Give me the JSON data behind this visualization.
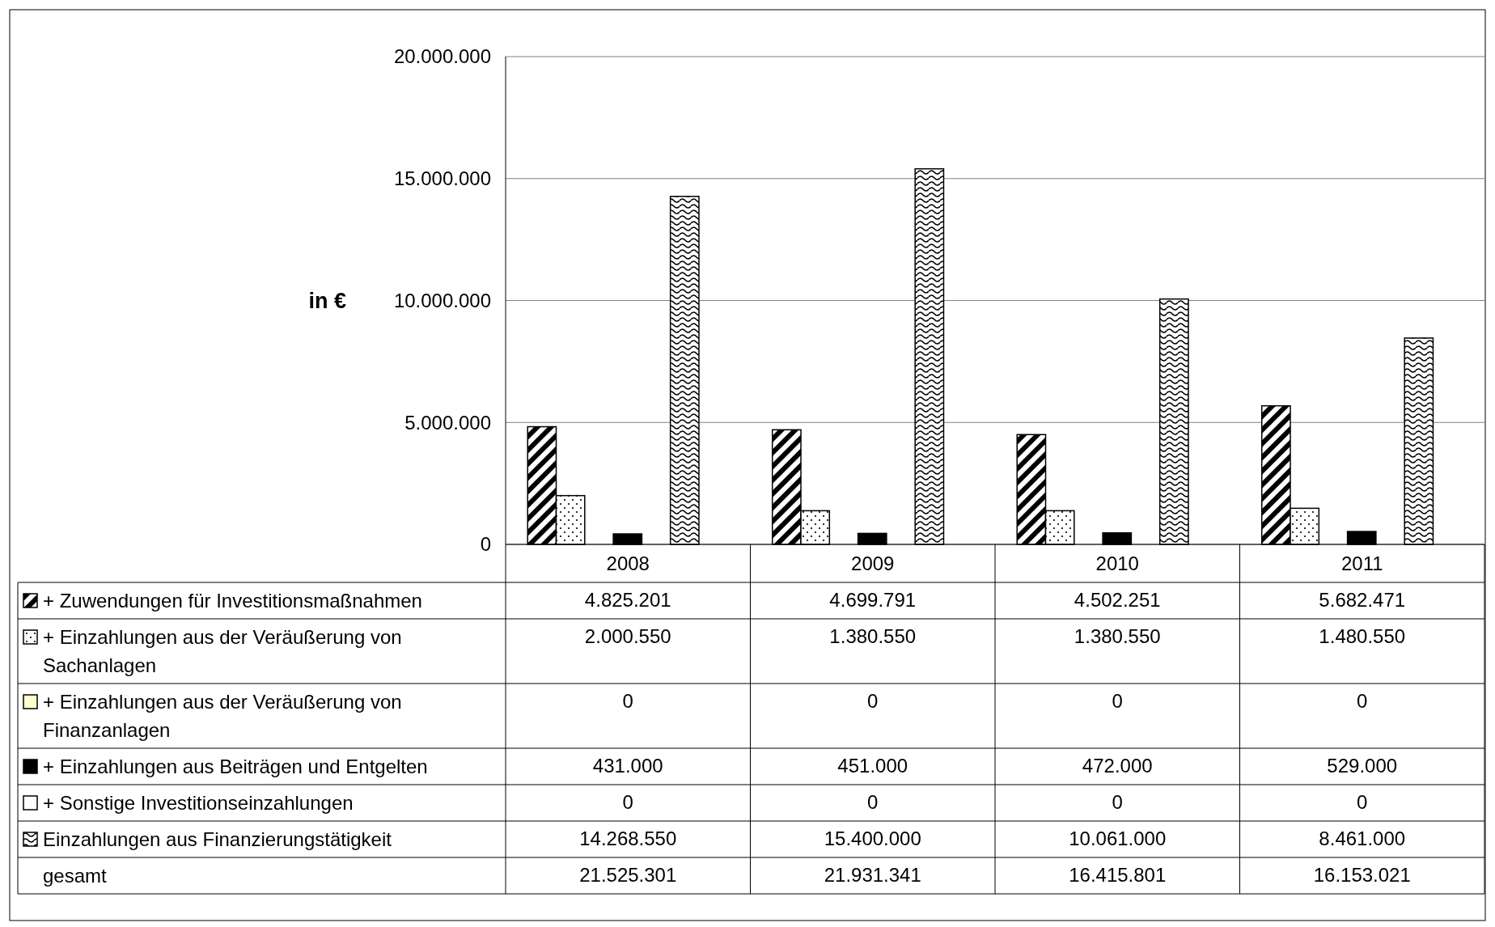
{
  "chart_data": {
    "type": "bar",
    "ylabel": "in €",
    "categories": [
      "2008",
      "2009",
      "2010",
      "2011"
    ],
    "series": [
      {
        "name": "+ Zuwendungen für Investitionsmaßnahmen",
        "color": "#000000",
        "values": [
          4825201,
          4699791,
          4502251,
          5682471
        ],
        "value_labels": [
          "4.825.201",
          "4.699.791",
          "4.502.251",
          "5.682.471"
        ]
      },
      {
        "name": "+ Einzahlungen aus der Veräußerung von Sachanlagen",
        "color": "#000000",
        "values": [
          2000550,
          1380550,
          1380550,
          1480550
        ],
        "value_labels": [
          "2.000.550",
          "1.380.550",
          "1.380.550",
          "1.480.550"
        ]
      },
      {
        "name": "+ Einzahlungen aus der Veräußerung von Finanzanlagen",
        "color": "#ffffcc",
        "values": [
          0,
          0,
          0,
          0
        ],
        "value_labels": [
          "0",
          "0",
          "0",
          "0"
        ]
      },
      {
        "name": "+ Einzahlungen aus Beiträgen und Entgelten",
        "color": "#000000",
        "values": [
          431000,
          451000,
          472000,
          529000
        ],
        "value_labels": [
          "431.000",
          "451.000",
          "472.000",
          "529.000"
        ]
      },
      {
        "name": "+ Sonstige Investitionseinzahlungen",
        "color": "#ffffff",
        "values": [
          0,
          0,
          0,
          0
        ],
        "value_labels": [
          "0",
          "0",
          "0",
          "0"
        ]
      },
      {
        "name": "Einzahlungen aus Finanzierungstätigkeit",
        "color": "#000000",
        "values": [
          14268550,
          15400000,
          10061000,
          8461000
        ],
        "value_labels": [
          "14.268.550",
          "15.400.000",
          "10.061.000",
          "8.461.000"
        ]
      }
    ],
    "annotations": [
      "gesamt",
      "21.525.301",
      "21.931.341",
      "16.415.801",
      "16.153.021"
    ],
    "ylim": [
      0,
      20000000
    ],
    "yticks": [
      0,
      {
        "value": 5000000,
        "label": "5.000.000"
      },
      {
        "value": 10000000,
        "label": "10.000.000"
      },
      {
        "value": 15000000,
        "label": "15.000.000"
      },
      {
        "value": 20000000,
        "label": "20.000.000"
      }
    ],
    "grid": "y",
    "legend": "bottom"
  }
}
